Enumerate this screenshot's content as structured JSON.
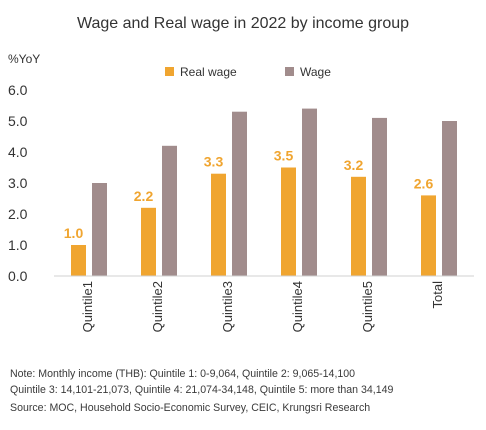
{
  "chart_data": {
    "type": "bar",
    "title": "Wage and Real wage in 2022 by income group",
    "ylabel": "%YoY",
    "ylim": [
      0,
      6
    ],
    "yticks": [
      0,
      1,
      2,
      3,
      4,
      5,
      6
    ],
    "ytick_labels": [
      "0.0",
      "1.0",
      "2.0",
      "3.0",
      "4.0",
      "5.0",
      "6.0"
    ],
    "categories": [
      "Quintile1",
      "Quintile2",
      "Quintile3",
      "Quintile4",
      "Quintile5",
      "Total"
    ],
    "series": [
      {
        "name": "Real wage",
        "color": "#f0a530",
        "values": [
          1.0,
          2.2,
          3.3,
          3.5,
          3.2,
          2.6
        ],
        "labels": [
          "1.0",
          "2.2",
          "3.3",
          "3.5",
          "3.2",
          "2.6"
        ]
      },
      {
        "name": "Wage",
        "color": "#a18c8c",
        "values": [
          3.0,
          4.2,
          5.3,
          5.4,
          5.1,
          5.0
        ]
      }
    ],
    "legend_position": "top",
    "grid": false
  },
  "notes": {
    "line1": "Note: Monthly income (THB): Quintile 1: 0-9,064, Quintile 2: 9,065-14,100",
    "line2": "Quintile 3: 14,101-21,073, Quintile 4:  21,074-34,148, Quintile 5: more than 34,149",
    "source": "Source: MOC, Household Socio-Economic Survey, CEIC, Krungsri Research"
  }
}
